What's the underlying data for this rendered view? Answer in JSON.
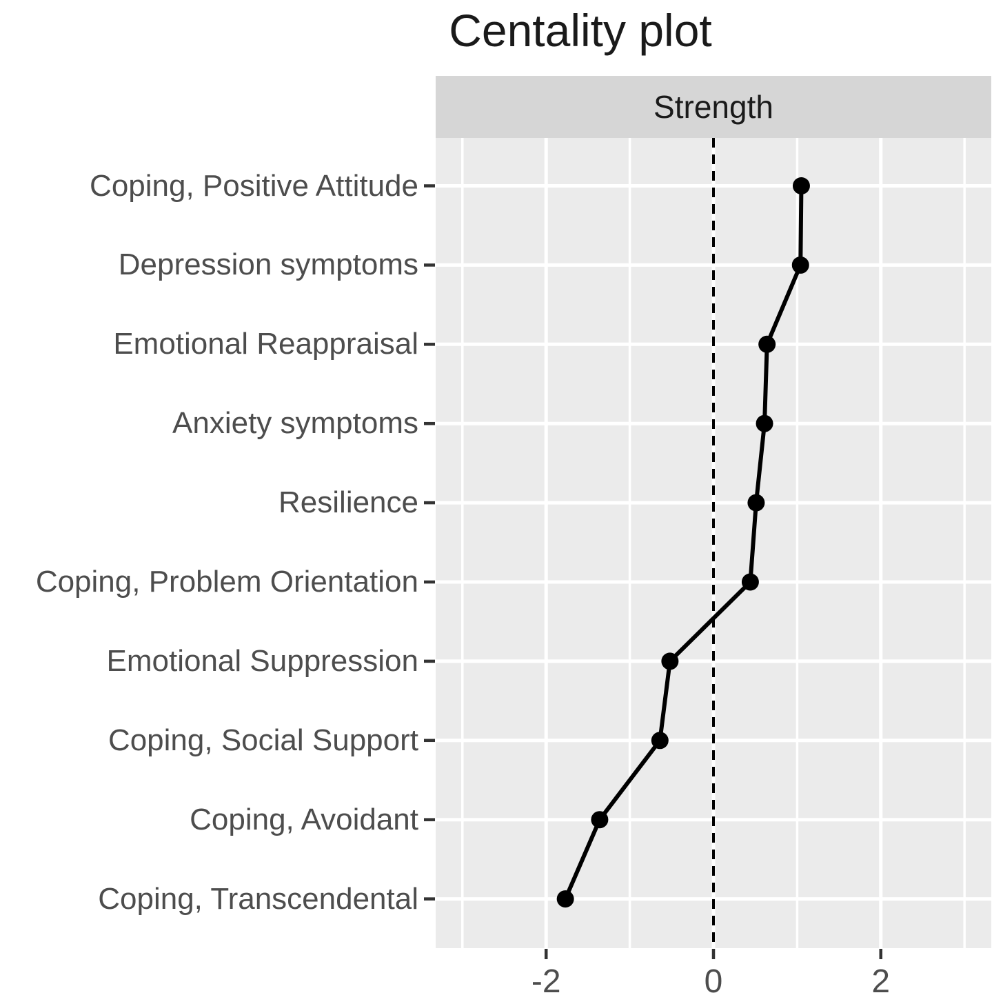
{
  "title": "Centality plot",
  "facet_label": "Strength",
  "colors": {
    "strip_background": "#d6d6d6",
    "panel_background": "#ebebeb",
    "gridline": "#ffffff",
    "data": "#000000",
    "zero_line": "#000000",
    "axis_text": "#4d4d4d",
    "tick_mark": "#333333",
    "title_text": "#1a1a1a"
  },
  "chart_data": {
    "type": "scatter",
    "title": "Centality plot",
    "facet": "Strength",
    "xlabel": "",
    "ylabel": "",
    "categories": [
      "Coping, Positive Attitude",
      "Depression symptoms",
      "Emotional Reappraisal",
      "Anxiety symptoms",
      "Resilience",
      "Coping, Problem Orientation",
      "Emotional Suppression",
      "Coping, Social Support",
      "Coping, Avoidant",
      "Coping, Transcendental"
    ],
    "series": [
      {
        "name": "Strength",
        "values": [
          1.05,
          1.04,
          0.64,
          0.61,
          0.51,
          0.44,
          -0.52,
          -0.64,
          -1.36,
          -1.77
        ]
      }
    ],
    "xlim": [
      -3.32,
      3.32
    ],
    "x_ticks": [
      -2,
      0,
      2
    ],
    "x_tick_labels": [
      "-2",
      "0",
      "2"
    ],
    "major_gridlines_x": [
      -2,
      0,
      2
    ],
    "minor_gridlines_x": [
      -3,
      -1,
      1,
      3
    ],
    "zero_reference_line": {
      "x": 0,
      "style": "dashed"
    },
    "grid": true,
    "legend_position": "none",
    "marker": "point-and-line",
    "orientation": "horizontal-categories"
  }
}
